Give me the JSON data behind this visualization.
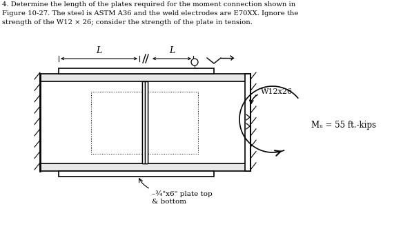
{
  "title_text": "4. Determine the length of the plates required for the moment connection shown in\nFigure 10-27. The steel is ASTM A36 and the weld electrodes are E70XX. Ignore the\nstrength of the W12 × 26; consider the strength of the plate in tension.",
  "label_W": "W12x26",
  "label_M": "Mᵤ = 55 ft.-kips",
  "label_plate": "–¾\"x6\" plate top\n& bottom",
  "label_L1": "L",
  "label_L2": "L",
  "bg_color": "#ffffff",
  "text_color": "#000000",
  "line_color": "#000000",
  "fig_width": 5.97,
  "fig_height": 3.48,
  "dpi": 100
}
